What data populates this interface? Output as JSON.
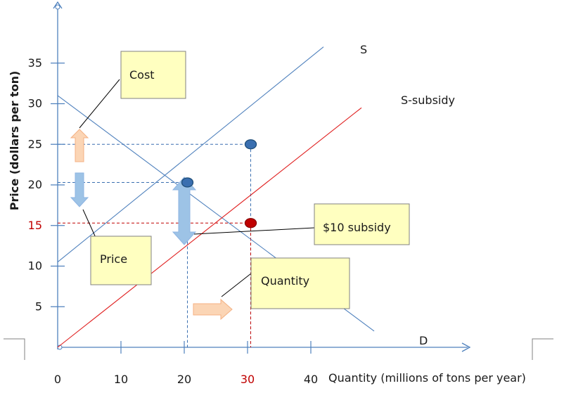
{
  "chart_data": {
    "type": "line",
    "title": "",
    "xlabel": "Quantity (millions of tons per year)",
    "ylabel": "Price (dollars per ton)",
    "xlim": [
      0,
      45
    ],
    "ylim": [
      0,
      37
    ],
    "x_ticks": [
      {
        "value": 0,
        "label": "0"
      },
      {
        "value": 10,
        "label": "10"
      },
      {
        "value": 20,
        "label": "20"
      },
      {
        "value": 30,
        "label": "30"
      },
      {
        "value": 40,
        "label": "40"
      }
    ],
    "y_ticks": [
      {
        "value": 5,
        "label": "5"
      },
      {
        "value": 10,
        "label": "10"
      },
      {
        "value": 15,
        "label": "15"
      },
      {
        "value": 20,
        "label": "20"
      },
      {
        "value": 25,
        "label": "25"
      },
      {
        "value": 30,
        "label": "30"
      },
      {
        "value": 35,
        "label": "35"
      }
    ],
    "highlight_color": "#c00000",
    "highlighted_ticks": {
      "x": [
        30
      ],
      "y": [
        15
      ]
    },
    "series": [
      {
        "name": "S",
        "points": [
          [
            0,
            10.5
          ],
          [
            42,
            37
          ]
        ],
        "color": "#4f81bd"
      },
      {
        "name": "D",
        "points": [
          [
            0,
            31
          ],
          [
            50,
            2
          ]
        ],
        "color": "#4f81bd"
      },
      {
        "name": "S-subsidy",
        "points": [
          [
            0,
            0
          ],
          [
            48,
            29.5
          ]
        ],
        "color": "#e02020"
      }
    ],
    "points": [
      {
        "x": 20.5,
        "y": 20.3,
        "color": "#3a6fb0"
      },
      {
        "x": 30.5,
        "y": 25,
        "color": "#3a6fb0"
      },
      {
        "x": 30.5,
        "y": 15.3,
        "color": "#c00000"
      }
    ],
    "annotations": [
      {
        "text": "Cost",
        "box": "yellow"
      },
      {
        "text": "Price",
        "box": "yellow"
      },
      {
        "text": "$10 subsidy",
        "box": "yellow"
      },
      {
        "text": "Quantity",
        "box": "yellow"
      }
    ],
    "grid": false,
    "legend": "none",
    "box_color": "#ffffc0",
    "arrow_colors": {
      "blue": "#9dc3e6",
      "orange": "#fbd5b5"
    }
  }
}
